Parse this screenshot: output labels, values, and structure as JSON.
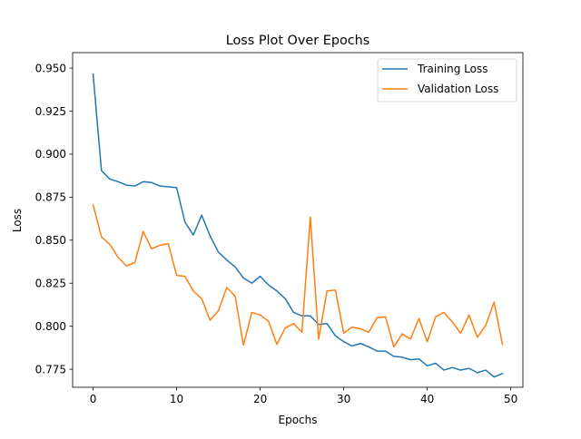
{
  "chart_data": {
    "type": "line",
    "title": "Loss Plot Over Epochs",
    "xlabel": "Epochs",
    "ylabel": "Loss",
    "xlim": [
      -2.45,
      51.45
    ],
    "ylim": [
      0.7645,
      0.959
    ],
    "xticks": [
      0,
      10,
      20,
      30,
      40,
      50
    ],
    "yticks": [
      0.775,
      0.8,
      0.825,
      0.85,
      0.875,
      0.9,
      0.925,
      0.95
    ],
    "ytick_labels": [
      "0.775",
      "0.800",
      "0.825",
      "0.850",
      "0.875",
      "0.900",
      "0.925",
      "0.950"
    ],
    "grid": false,
    "legend_position": "top-right",
    "x": [
      0,
      1,
      2,
      3,
      4,
      5,
      6,
      7,
      8,
      9,
      10,
      11,
      12,
      13,
      14,
      15,
      16,
      17,
      18,
      19,
      20,
      21,
      22,
      23,
      24,
      25,
      26,
      27,
      28,
      29,
      30,
      31,
      32,
      33,
      34,
      35,
      36,
      37,
      38,
      39,
      40,
      41,
      42,
      43,
      44,
      45,
      46,
      47,
      48,
      49
    ],
    "series": [
      {
        "name": "Training Loss",
        "color": "#1f77b4",
        "values": [
          0.9465,
          0.8905,
          0.8855,
          0.884,
          0.882,
          0.8815,
          0.884,
          0.8835,
          0.8815,
          0.881,
          0.8805,
          0.8605,
          0.853,
          0.8645,
          0.8525,
          0.843,
          0.8385,
          0.8345,
          0.828,
          0.825,
          0.829,
          0.824,
          0.8205,
          0.816,
          0.808,
          0.806,
          0.806,
          0.801,
          0.8015,
          0.7945,
          0.791,
          0.7885,
          0.79,
          0.788,
          0.7855,
          0.7855,
          0.7825,
          0.782,
          0.7805,
          0.781,
          0.777,
          0.7785,
          0.7745,
          0.776,
          0.7745,
          0.7755,
          0.773,
          0.7745,
          0.7705,
          0.7725
        ]
      },
      {
        "name": "Validation Loss",
        "color": "#ff7f0e",
        "values": [
          0.8705,
          0.852,
          0.8475,
          0.84,
          0.835,
          0.837,
          0.855,
          0.845,
          0.847,
          0.848,
          0.8295,
          0.829,
          0.8205,
          0.816,
          0.8035,
          0.809,
          0.8225,
          0.8175,
          0.789,
          0.808,
          0.8065,
          0.803,
          0.7895,
          0.799,
          0.8015,
          0.7965,
          0.8635,
          0.7925,
          0.8205,
          0.821,
          0.796,
          0.7995,
          0.7985,
          0.7965,
          0.805,
          0.8055,
          0.788,
          0.7955,
          0.7925,
          0.8045,
          0.791,
          0.8055,
          0.808,
          0.8025,
          0.796,
          0.8065,
          0.7935,
          0.8005,
          0.814,
          0.7895
        ]
      }
    ]
  }
}
